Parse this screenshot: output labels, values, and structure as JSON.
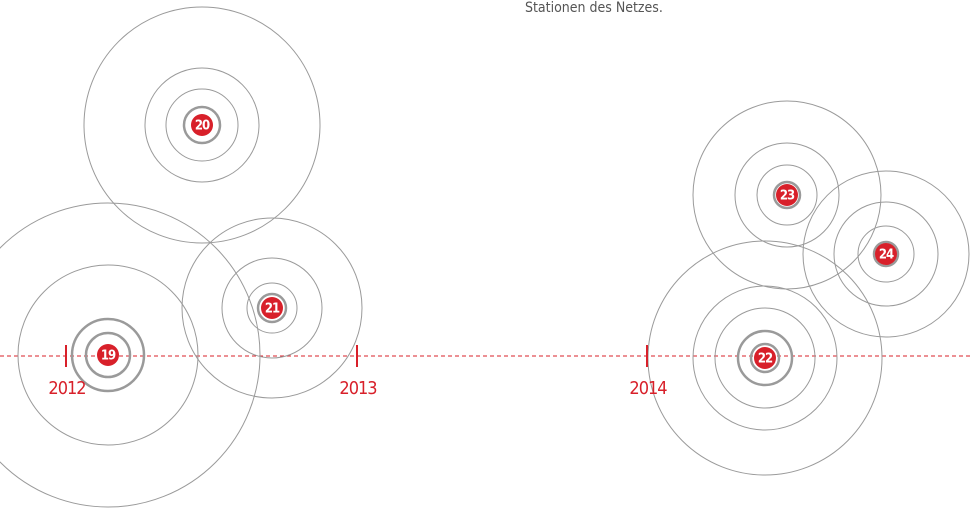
{
  "caption": "Stationen des Netzes.",
  "years": [
    {
      "label": "2012"
    },
    {
      "label": "2013"
    },
    {
      "label": "2014"
    }
  ],
  "nodes": [
    {
      "label": "19"
    },
    {
      "label": "20"
    },
    {
      "label": "21"
    },
    {
      "label": "22"
    },
    {
      "label": "23"
    },
    {
      "label": "24"
    }
  ]
}
